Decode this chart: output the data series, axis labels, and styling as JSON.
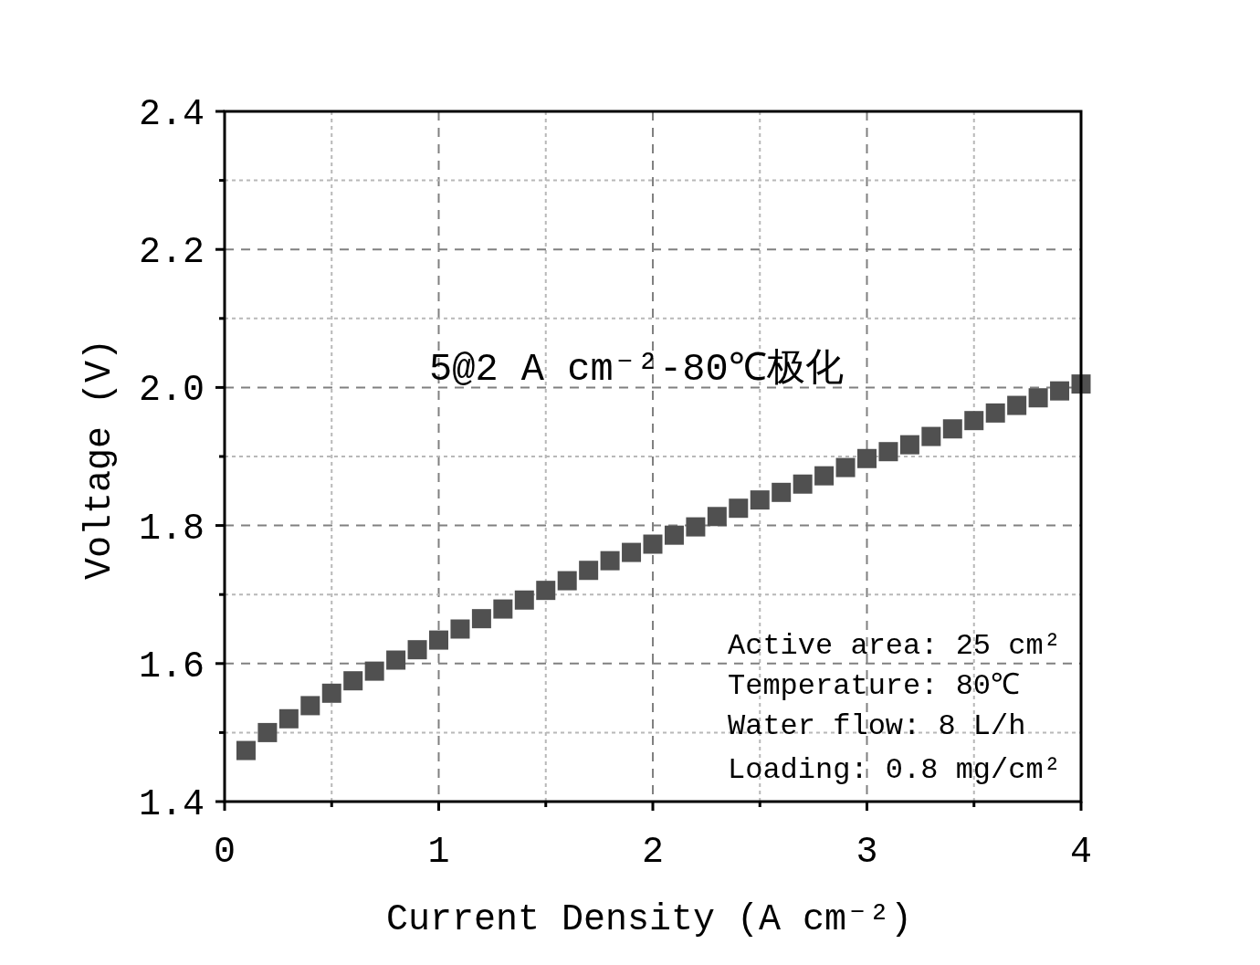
{
  "chart_data": {
    "type": "scatter",
    "xlabel": "Current Density (A cm⁻²)",
    "ylabel": "Voltage (V)",
    "x": [
      0.1,
      0.2,
      0.3,
      0.4,
      0.5,
      0.6,
      0.7,
      0.8,
      0.9,
      1.0,
      1.1,
      1.2,
      1.3,
      1.4,
      1.5,
      1.6,
      1.7,
      1.8,
      1.9,
      2.0,
      2.1,
      2.2,
      2.3,
      2.4,
      2.5,
      2.6,
      2.7,
      2.8,
      2.9,
      3.0,
      3.1,
      3.2,
      3.3,
      3.4,
      3.5,
      3.6,
      3.7,
      3.8,
      3.9,
      4.0
    ],
    "values": [
      1.474,
      1.5,
      1.52,
      1.539,
      1.557,
      1.575,
      1.589,
      1.605,
      1.62,
      1.634,
      1.65,
      1.665,
      1.679,
      1.692,
      1.706,
      1.72,
      1.735,
      1.749,
      1.761,
      1.773,
      1.786,
      1.798,
      1.813,
      1.825,
      1.837,
      1.848,
      1.86,
      1.872,
      1.884,
      1.897,
      1.907,
      1.917,
      1.929,
      1.94,
      1.952,
      1.963,
      1.974,
      1.985,
      1.995,
      2.005
    ],
    "color": "#505050",
    "marker": "square",
    "xlim": [
      0,
      4
    ],
    "ylim": [
      1.4,
      2.4
    ],
    "xticks": [
      0,
      {
        "value": 0.5,
        "label": null
      },
      1,
      {
        "value": 1.5,
        "label": null
      },
      2,
      {
        "value": 2.5,
        "label": null
      },
      3,
      {
        "value": 3.5,
        "label": null
      },
      4
    ],
    "yticks": [
      1.4,
      {
        "value": 1.5,
        "label": null
      },
      1.6,
      {
        "value": 1.7,
        "label": null
      },
      1.8,
      {
        "value": 1.9,
        "label": null
      },
      {
        "value": 2,
        "label": "2.0"
      },
      {
        "value": 2.1,
        "label": null
      },
      2.2,
      {
        "value": 2.3,
        "label": null
      },
      2.4
    ],
    "grid": true,
    "annotations": [
      "5@2 A cm⁻²-80℃极化",
      "Active area: 25 cm²",
      "Temperature: 80℃",
      "Water flow: 8 L/h",
      "Loading: 0.8 mg/cm²"
    ]
  }
}
